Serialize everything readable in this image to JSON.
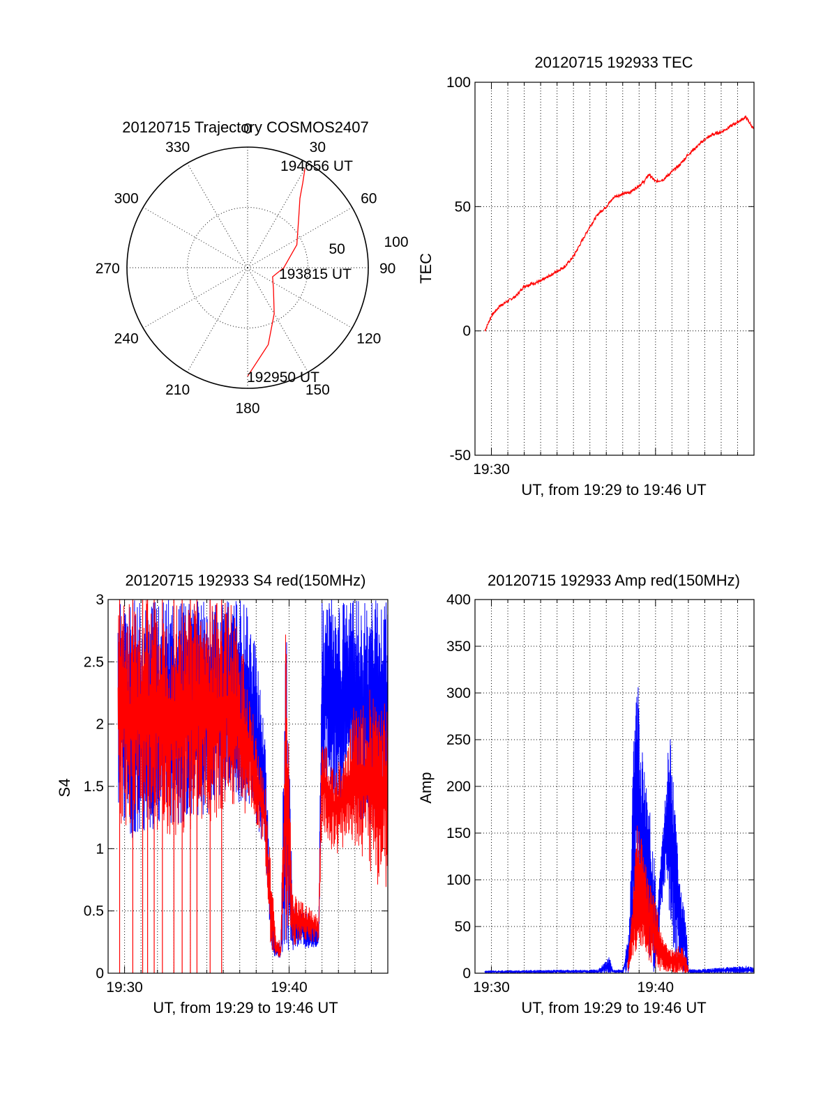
{
  "chart_data": [
    {
      "id": "trajectory",
      "type": "polar",
      "title": "20120715 Trajectory COSMOS2407",
      "angle_labels": [
        "0",
        "30",
        "60",
        "90",
        "120",
        "150",
        "180",
        "210",
        "240",
        "270",
        "300",
        "330"
      ],
      "radial_labels": [
        "50",
        "100"
      ],
      "radial_range": [
        0,
        100
      ],
      "grid": true,
      "annotations": [
        "194656 UT",
        "193815 UT",
        "192950 UT"
      ],
      "series": [
        {
          "color": "#ff0000",
          "points_az_r": [
            [
              180,
              90
            ],
            [
              165,
              66
            ],
            [
              150,
              44
            ],
            [
              130,
              28
            ],
            [
              110,
              22
            ],
            [
              90,
              30
            ],
            [
              65,
              45
            ],
            [
              45,
              60
            ],
            [
              37,
              72
            ],
            [
              33,
              84
            ],
            [
              30,
              95
            ]
          ]
        }
      ]
    },
    {
      "id": "tec",
      "type": "line",
      "title": "20120715 192933 TEC",
      "xlabel": "UT, from 19:29 to 19:46 UT",
      "ylabel": "TEC",
      "xlim": [
        "19:29",
        "19:46"
      ],
      "ylim": [
        -50,
        100
      ],
      "xtick_labels": [
        "19:30"
      ],
      "ytick_labels": [
        "100",
        "50",
        "0",
        "-50"
      ],
      "grid": true,
      "series": [
        {
          "color": "#ff0000",
          "x_min": [
            29.6,
            30.0,
            30.5,
            31.0,
            31.5,
            32.0,
            32.5,
            33.0,
            33.5,
            34.0,
            34.5,
            35.0,
            35.5,
            36.0,
            36.5,
            37.0,
            37.5,
            38.0,
            38.5,
            38.9,
            39.3,
            39.6,
            40.0,
            40.5,
            41.0,
            41.5,
            42.0,
            42.5,
            43.0,
            43.5,
            44.0,
            44.5,
            45.0,
            45.5,
            46.0
          ],
          "y": [
            0,
            6,
            10,
            12,
            14,
            18,
            19,
            20,
            22,
            24,
            26,
            30,
            36,
            42,
            47,
            50,
            54,
            55,
            56,
            58,
            60,
            63,
            60,
            61,
            64,
            67,
            71,
            74,
            77,
            79,
            80,
            82,
            84,
            86,
            81
          ]
        }
      ]
    },
    {
      "id": "s4",
      "type": "line",
      "title": "20120715 192933 S4 red(150MHz)",
      "xlabel": "UT, from 19:29 to 19:46 UT",
      "ylabel": "S4",
      "xlim": [
        "19:29",
        "19:46"
      ],
      "ylim": [
        0,
        3
      ],
      "xtick_labels": [
        "19:30",
        "19:40"
      ],
      "ytick_labels": [
        "3",
        "2.5",
        "2",
        "1.5",
        "1",
        "0.5",
        "0"
      ],
      "grid": true,
      "series": [
        {
          "color": "#0000ff",
          "envelope_x_min": [
            29.6,
            30.5,
            31.5,
            32.5,
            33.5,
            34.5,
            35.5,
            36.5,
            37.0,
            37.5,
            38.0,
            38.5,
            38.9,
            39.2,
            39.5,
            39.8,
            40.2,
            40.6,
            41.0,
            41.5,
            41.8,
            42.0,
            42.5,
            43.0,
            43.5,
            44.0,
            44.5,
            45.0,
            45.5,
            46.0
          ],
          "upper": [
            3,
            3,
            3,
            3,
            3,
            3,
            3,
            3,
            3,
            3,
            2.6,
            2.0,
            0.6,
            0.25,
            0.25,
            3,
            0.6,
            0.5,
            0.5,
            0.4,
            0.35,
            3,
            3,
            3,
            3,
            3,
            3,
            3,
            3,
            3
          ],
          "lower": [
            1.3,
            1.05,
            1.1,
            1.2,
            1.2,
            1.25,
            1.3,
            1.4,
            1.35,
            1.3,
            1.2,
            1.0,
            0.15,
            0.13,
            0.12,
            0.15,
            0.18,
            0.22,
            0.2,
            0.2,
            0.2,
            1.5,
            1.4,
            1.3,
            1.5,
            1.3,
            1.2,
            1.2,
            1.3,
            1.4
          ]
        },
        {
          "color": "#ff0000",
          "envelope_x_min": [
            29.6,
            30.5,
            31.5,
            32.5,
            33.5,
            34.5,
            35.5,
            36.5,
            37.0,
            37.5,
            38.0,
            38.5,
            38.9,
            39.2,
            39.5,
            39.8,
            40.2,
            40.6,
            41.0,
            41.5,
            41.8,
            42.0,
            42.5,
            43.0,
            43.5,
            44.0,
            44.5,
            45.0,
            45.5,
            46.0
          ],
          "upper": [
            3,
            3,
            3,
            3,
            3,
            3,
            3,
            3,
            2.7,
            2.4,
            1.9,
            1.6,
            0.9,
            0.3,
            0.25,
            3,
            0.7,
            0.6,
            0.55,
            0.5,
            0.45,
            2.0,
            1.7,
            1.7,
            1.8,
            2.2,
            2.2,
            2.3,
            2.2,
            2.2
          ],
          "lower": [
            1.2,
            1.1,
            1.15,
            1.1,
            1.1,
            1.2,
            1.2,
            1.3,
            1.3,
            1.25,
            1.2,
            1.0,
            0.15,
            0.13,
            0.12,
            0.15,
            0.2,
            0.25,
            0.25,
            0.25,
            0.25,
            1.2,
            1.0,
            0.9,
            1.1,
            1.0,
            0.9,
            0.8,
            0.6,
            0.6
          ],
          "spikes_x_min": [
            29.7,
            30.5,
            31.1,
            31.4,
            31.8,
            32.3,
            33.0,
            33.5,
            34.0,
            34.4,
            35.2,
            35.9
          ]
        }
      ]
    },
    {
      "id": "amp",
      "type": "line",
      "title": "20120715 192933 Amp red(150MHz)",
      "xlabel": "UT, from 19:29 to 19:46 UT",
      "ylabel": "Amp",
      "xlim": [
        "19:29",
        "19:46"
      ],
      "ylim": [
        0,
        400
      ],
      "xtick_labels": [
        "19:30",
        "19:40"
      ],
      "ytick_labels": [
        "400",
        "350",
        "300",
        "250",
        "200",
        "150",
        "100",
        "50",
        "0"
      ],
      "grid": true,
      "series": [
        {
          "color": "#0000ff",
          "envelope_x_min": [
            29.6,
            36.5,
            37.2,
            37.4,
            38.0,
            38.4,
            38.6,
            38.8,
            38.95,
            39.1,
            39.3,
            39.6,
            39.9,
            40.1,
            40.3,
            40.6,
            40.9,
            41.2,
            41.5,
            41.8,
            42.0,
            42.5,
            45.5,
            46.0
          ],
          "upper": [
            3,
            4,
            18,
            4,
            4,
            50,
            200,
            350,
            320,
            260,
            220,
            180,
            140,
            60,
            120,
            200,
            270,
            180,
            90,
            80,
            5,
            4,
            8,
            6
          ],
          "lower": [
            0,
            0,
            0,
            0,
            0,
            0,
            30,
            80,
            90,
            60,
            30,
            10,
            0,
            20,
            60,
            100,
            40,
            10,
            0,
            0,
            0,
            0,
            0,
            0
          ]
        },
        {
          "color": "#ff0000",
          "envelope_x_min": [
            38.3,
            38.6,
            38.9,
            39.2,
            39.5,
            39.8,
            40.1,
            40.4,
            40.7,
            41.0,
            41.4,
            41.8,
            42.0
          ],
          "upper": [
            10,
            80,
            165,
            140,
            110,
            90,
            70,
            40,
            30,
            25,
            30,
            25,
            5
          ],
          "lower": [
            0,
            10,
            30,
            25,
            15,
            10,
            5,
            0,
            0,
            0,
            0,
            0,
            0
          ]
        }
      ]
    }
  ]
}
